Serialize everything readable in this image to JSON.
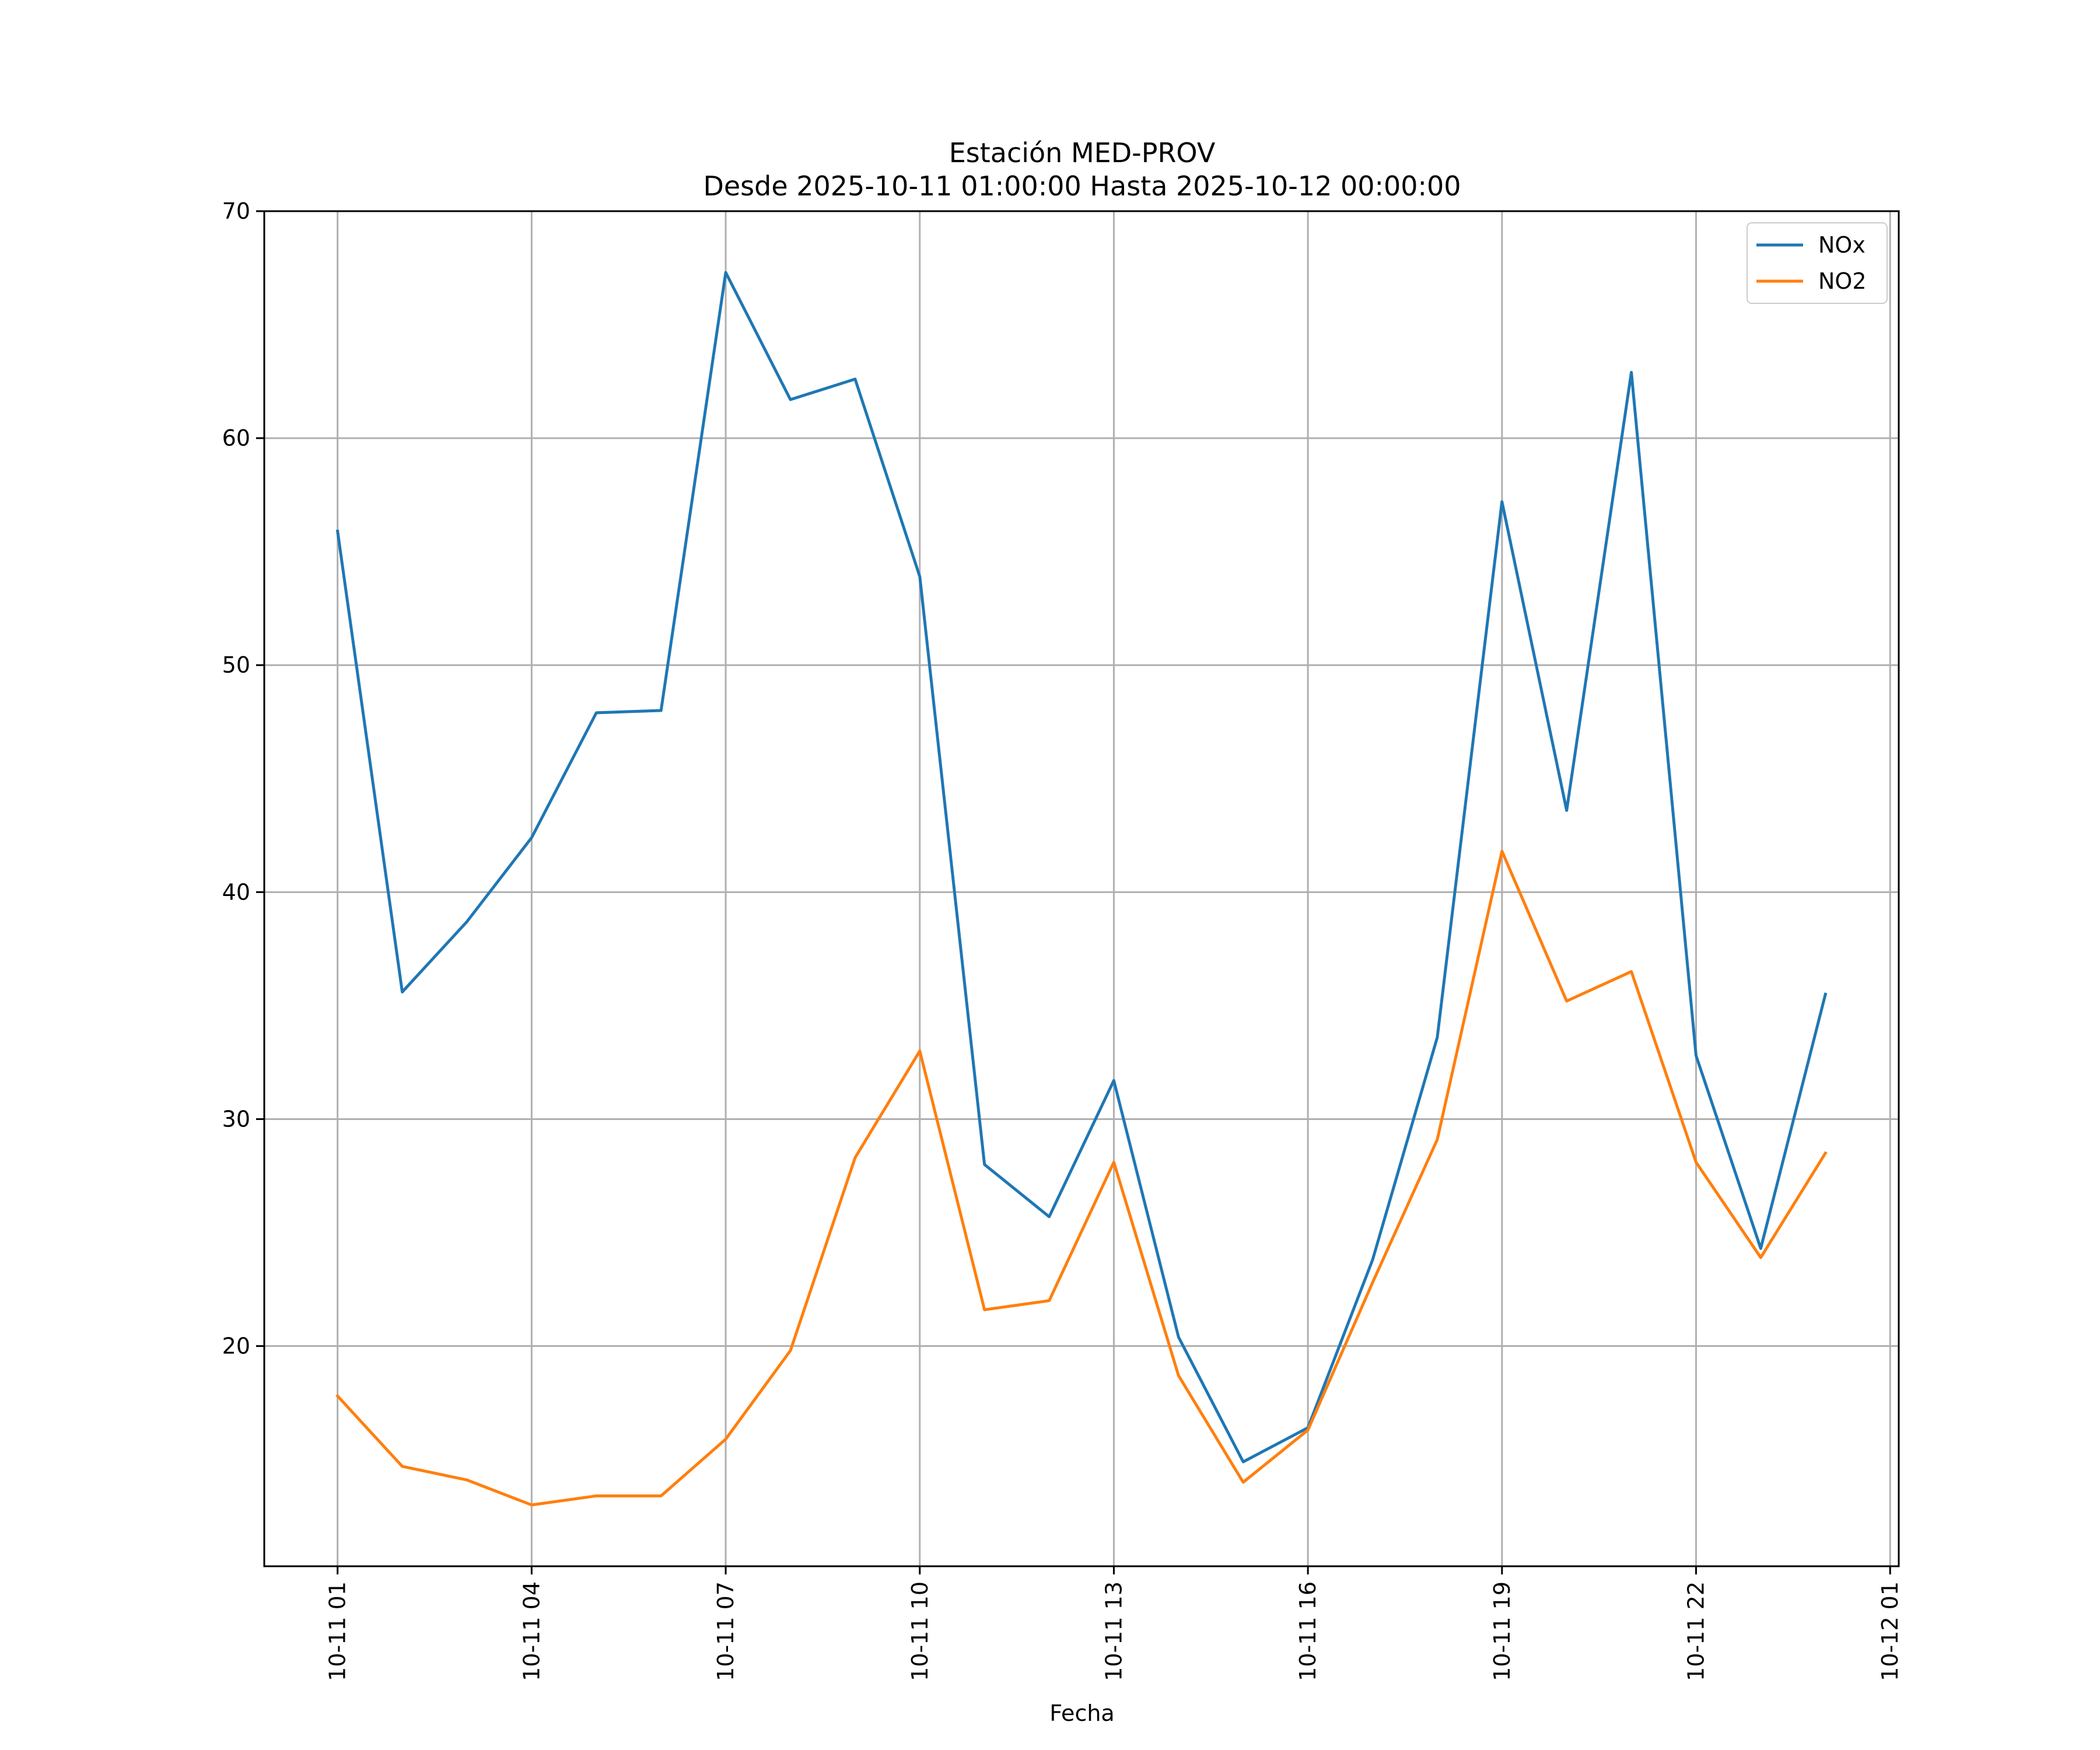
{
  "chart_data": {
    "type": "line",
    "title": "Estación MED-PROV",
    "subtitle": "Desde 2025-10-11 01:00:00 Hasta 2025-10-12 00:00:00",
    "xlabel": "Fecha",
    "ylabel": "",
    "x": [
      "2025-10-11 01:00",
      "2025-10-11 02:00",
      "2025-10-11 03:00",
      "2025-10-11 04:00",
      "2025-10-11 05:00",
      "2025-10-11 06:00",
      "2025-10-11 07:00",
      "2025-10-11 08:00",
      "2025-10-11 09:00",
      "2025-10-11 10:00",
      "2025-10-11 11:00",
      "2025-10-11 12:00",
      "2025-10-11 13:00",
      "2025-10-11 14:00",
      "2025-10-11 15:00",
      "2025-10-11 16:00",
      "2025-10-11 17:00",
      "2025-10-11 18:00",
      "2025-10-11 19:00",
      "2025-10-11 20:00",
      "2025-10-11 21:00",
      "2025-10-11 22:00",
      "2025-10-11 23:00",
      "2025-10-12 00:00"
    ],
    "series": [
      {
        "name": "NOx",
        "color": "#1f77b4",
        "values": [
          55.9,
          35.6,
          38.7,
          42.4,
          47.9,
          48.0,
          67.3,
          61.7,
          62.6,
          53.9,
          28.0,
          25.7,
          31.7,
          20.4,
          14.9,
          16.4,
          23.8,
          33.6,
          57.2,
          43.6,
          62.9,
          32.8,
          24.3,
          35.5
        ]
      },
      {
        "name": "NO2",
        "color": "#ff7f0e",
        "values": [
          17.8,
          14.7,
          14.1,
          13.0,
          13.4,
          13.4,
          15.9,
          19.8,
          28.3,
          33.0,
          21.6,
          22.0,
          28.1,
          18.7,
          14.0,
          16.3,
          22.8,
          29.1,
          41.8,
          35.2,
          36.5,
          28.1,
          23.9,
          28.5
        ]
      }
    ],
    "x_ticks": [
      "10-11 01",
      "10-11 04",
      "10-11 07",
      "10-11 10",
      "10-11 13",
      "10-11 16",
      "10-11 19",
      "10-11 22",
      "10-12 01"
    ],
    "y_ticks": [
      "20",
      "30",
      "40",
      "50",
      "60",
      "70"
    ],
    "ylim": [
      10.3,
      70
    ],
    "xlim": [
      "2025-10-10 23:52",
      "2025-10-12 01:08"
    ],
    "grid": true,
    "legend_position": "top-right"
  }
}
